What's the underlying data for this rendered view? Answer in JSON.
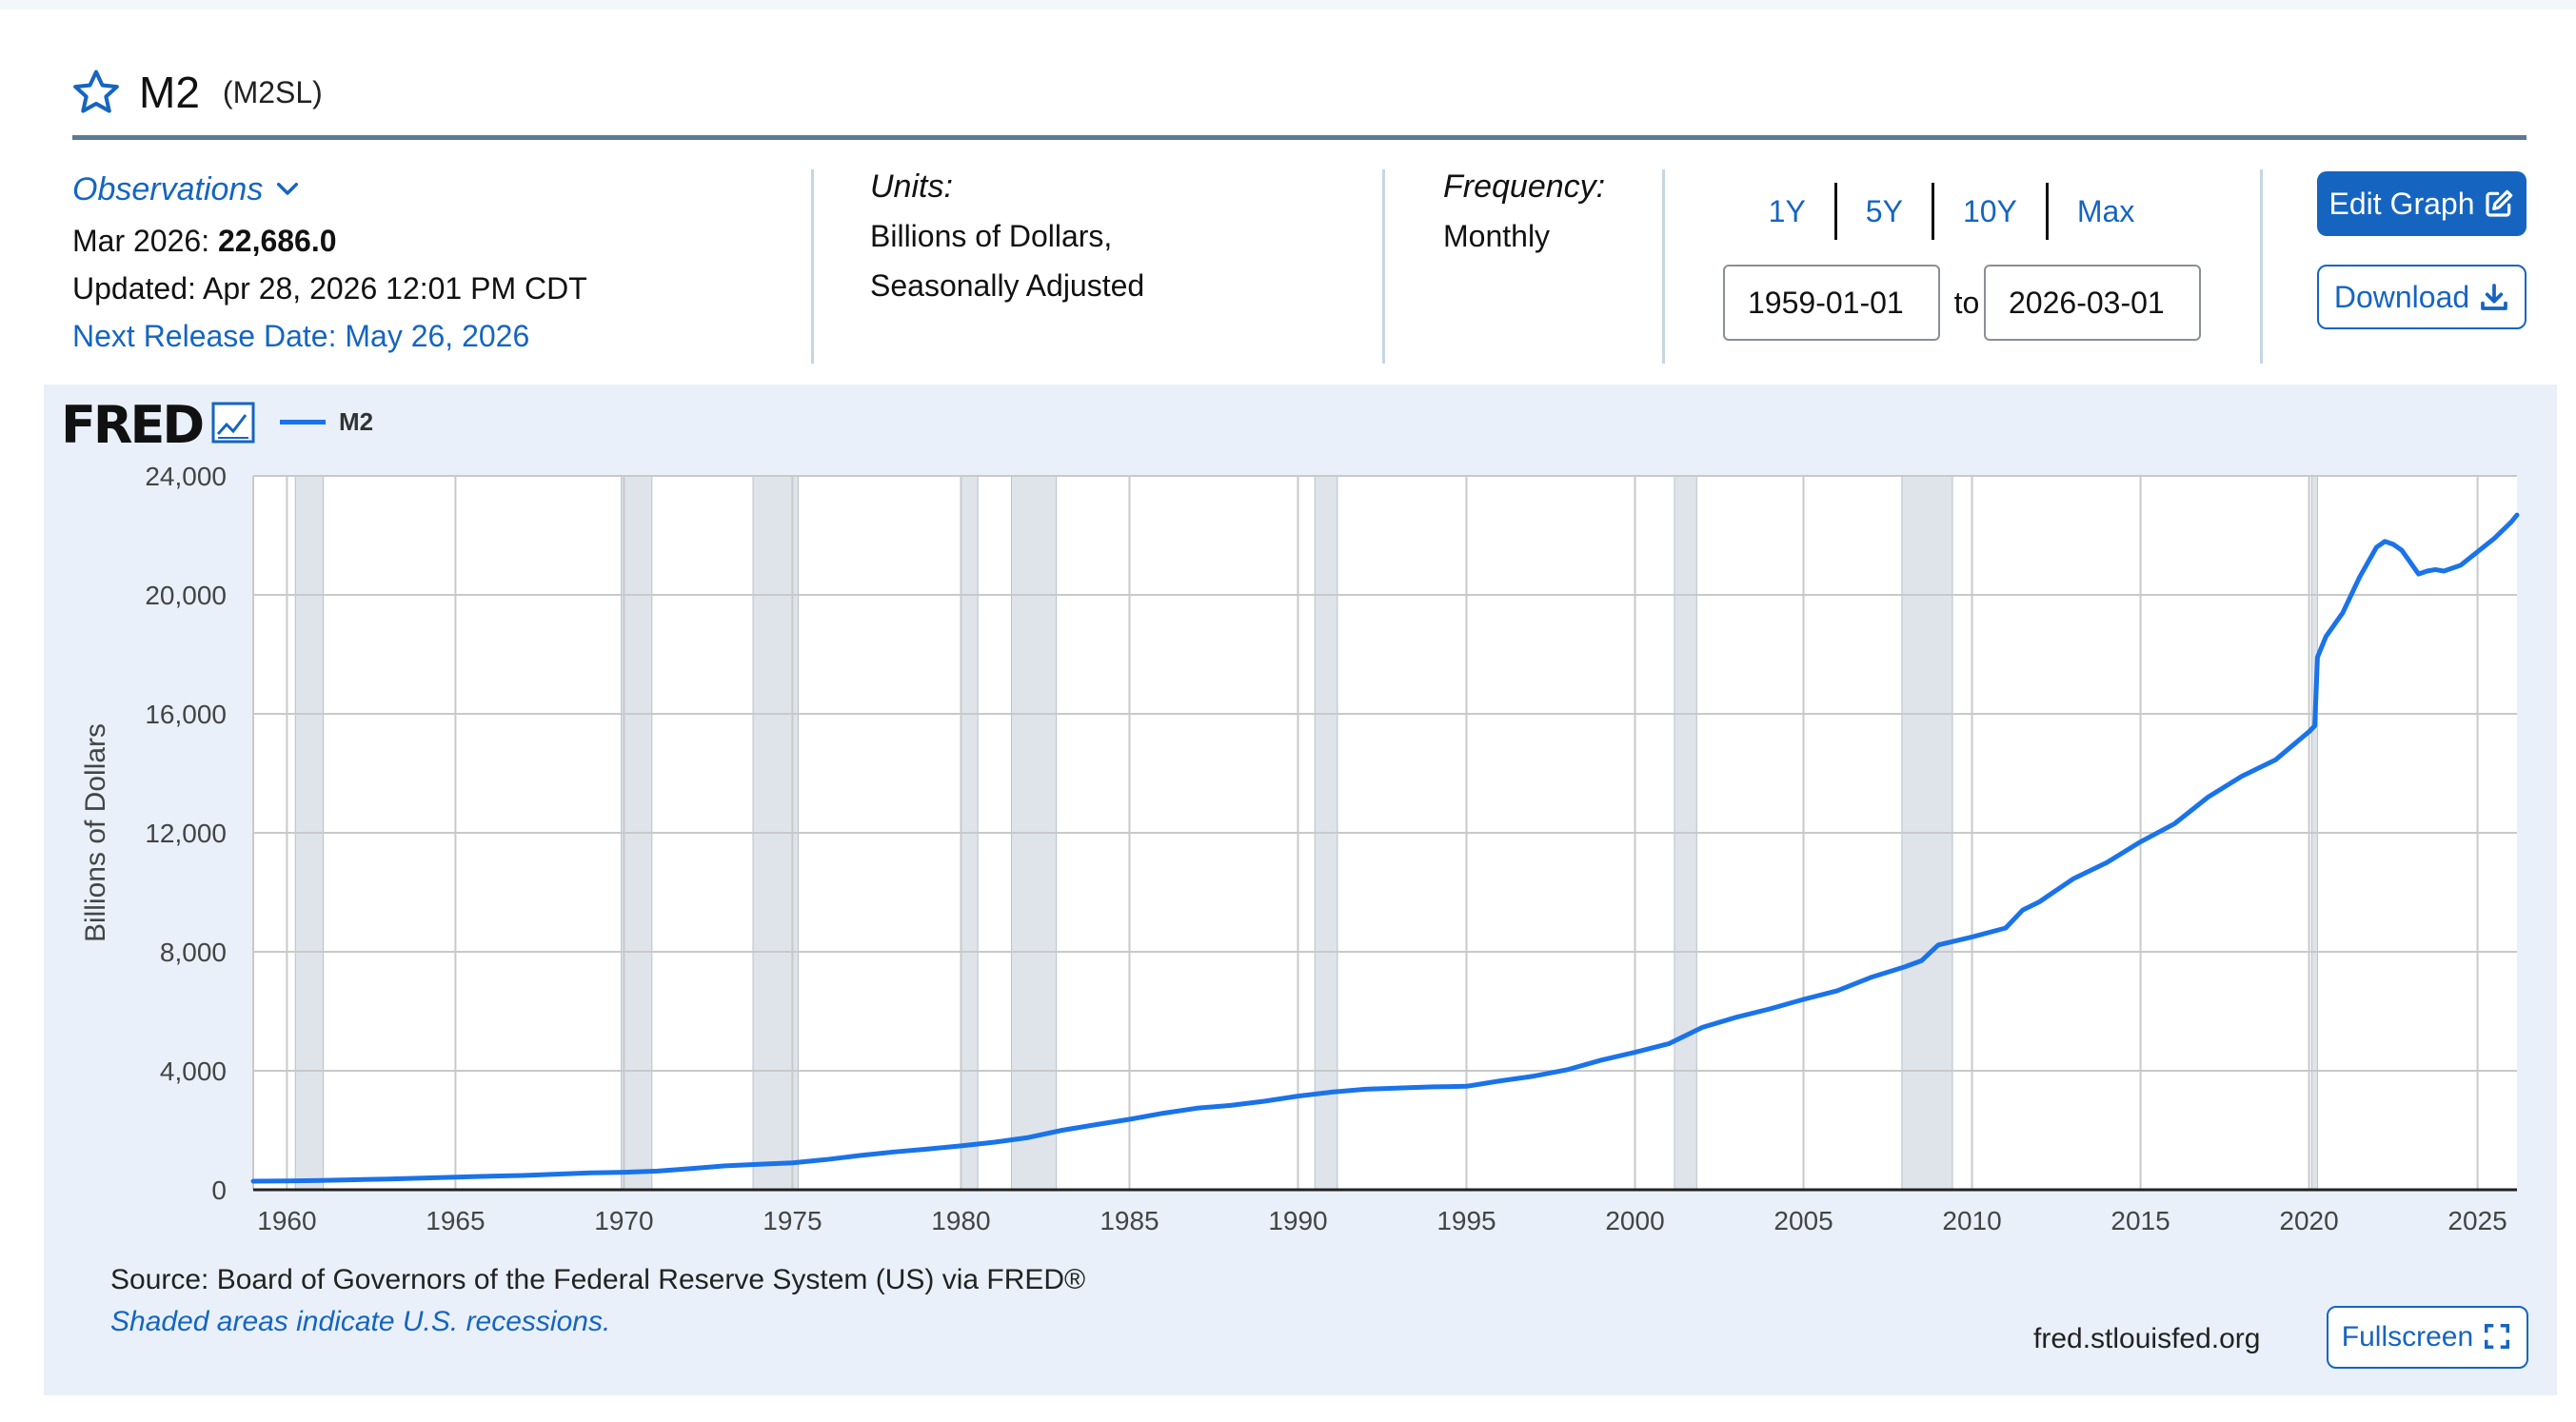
{
  "series": {
    "title": "M2",
    "code": "(M2SL)"
  },
  "observations": {
    "label": "Observations",
    "latest_prefix": "Mar 2026:",
    "latest_value": "22,686.0",
    "updated": "Updated: Apr 28, 2026 12:01 PM CDT",
    "next_release": "Next Release Date: May 26, 2026"
  },
  "units": {
    "label": "Units:",
    "line1": "Billions of Dollars,",
    "line2": "Seasonally Adjusted"
  },
  "frequency": {
    "label": "Frequency:",
    "value": "Monthly"
  },
  "range": {
    "tabs": [
      "1Y",
      "5Y",
      "10Y",
      "Max"
    ],
    "start": "1959-01-01",
    "to_label": "to",
    "end": "2026-03-01"
  },
  "buttons": {
    "edit_graph": "Edit Graph",
    "download": "Download",
    "fullscreen": "Fullscreen"
  },
  "logo_text": "FRED",
  "footer": {
    "source": "Source: Board of Governors of the Federal Reserve System (US) via FRED®",
    "shaded_note": "Shaded areas indicate U.S. recessions.",
    "site": "fred.stlouisfed.org"
  },
  "colors": {
    "accent": "#1565c0",
    "line": "#1a73e8",
    "panel": "#e9f0f9",
    "recession": "#dfe4ea"
  },
  "chart_data": {
    "type": "line",
    "title": "",
    "xlabel": "",
    "ylabel": "Billions of Dollars",
    "legend": "top-left",
    "grid": true,
    "xlim": [
      1959.0,
      2026.17
    ],
    "ylim": [
      0,
      24000
    ],
    "x_ticks": [
      1960,
      1965,
      1970,
      1975,
      1980,
      1985,
      1990,
      1995,
      2000,
      2005,
      2010,
      2015,
      2020,
      2025
    ],
    "x_tick_labels": [
      "1960",
      "1965",
      "1970",
      "1975",
      "1980",
      "1985",
      "1990",
      "1995",
      "2000",
      "2005",
      "2010",
      "2015",
      "2020",
      "2025"
    ],
    "y_ticks": [
      0,
      4000,
      8000,
      12000,
      16000,
      20000,
      24000
    ],
    "y_tick_labels": [
      "0",
      "4,000",
      "8,000",
      "12,000",
      "16,000",
      "20,000",
      "24,000"
    ],
    "recessions": [
      [
        1960.25,
        1961.08
      ],
      [
        1969.92,
        1970.83
      ],
      [
        1973.83,
        1975.17
      ],
      [
        1980.0,
        1980.5
      ],
      [
        1981.5,
        1982.83
      ],
      [
        1990.5,
        1991.17
      ],
      [
        2001.17,
        2001.83
      ],
      [
        2007.92,
        2009.42
      ],
      [
        2020.08,
        2020.25
      ]
    ],
    "series": [
      {
        "name": "M2",
        "x": [
          1959.0,
          1960.0,
          1961.0,
          1962.0,
          1963.0,
          1964.0,
          1965.0,
          1966.0,
          1967.0,
          1968.0,
          1969.0,
          1970.0,
          1971.0,
          1972.0,
          1973.0,
          1974.0,
          1975.0,
          1976.0,
          1977.0,
          1978.0,
          1979.0,
          1980.0,
          1981.0,
          1982.0,
          1983.0,
          1984.0,
          1985.0,
          1986.0,
          1987.0,
          1988.0,
          1989.0,
          1990.0,
          1991.0,
          1992.0,
          1993.0,
          1994.0,
          1995.0,
          1996.0,
          1997.0,
          1998.0,
          1999.0,
          2000.0,
          2001.0,
          2002.0,
          2003.0,
          2004.0,
          2005.0,
          2006.0,
          2007.0,
          2008.0,
          2008.5,
          2009.0,
          2010.0,
          2011.0,
          2011.5,
          2012.0,
          2013.0,
          2014.0,
          2015.0,
          2016.0,
          2017.0,
          2018.0,
          2019.0,
          2020.0,
          2020.17,
          2020.25,
          2020.5,
          2021.0,
          2021.5,
          2022.0,
          2022.25,
          2022.5,
          2022.75,
          2023.0,
          2023.25,
          2023.5,
          2023.75,
          2024.0,
          2024.5,
          2025.0,
          2025.5,
          2026.0,
          2026.17
        ],
        "values": [
          287,
          298,
          312,
          335,
          363,
          393,
          425,
          454,
          480,
          525,
          567,
          588,
          626,
          710,
          802,
          855,
          901,
          1016,
          1152,
          1270,
          1366,
          1474,
          1600,
          1756,
          2000,
          2190,
          2367,
          2573,
          2744,
          2834,
          2977,
          3150,
          3284,
          3380,
          3420,
          3460,
          3480,
          3660,
          3820,
          4040,
          4360,
          4620,
          4910,
          5460,
          5800,
          6080,
          6400,
          6690,
          7140,
          7490,
          7700,
          8230,
          8500,
          8800,
          9400,
          9680,
          10450,
          11000,
          11700,
          12300,
          13200,
          13900,
          14450,
          15400,
          15600,
          17900,
          18600,
          19400,
          20600,
          21600,
          21800,
          21700,
          21500,
          21100,
          20700,
          20800,
          20850,
          20800,
          21000,
          21450,
          21900,
          22450,
          22686
        ]
      }
    ]
  }
}
